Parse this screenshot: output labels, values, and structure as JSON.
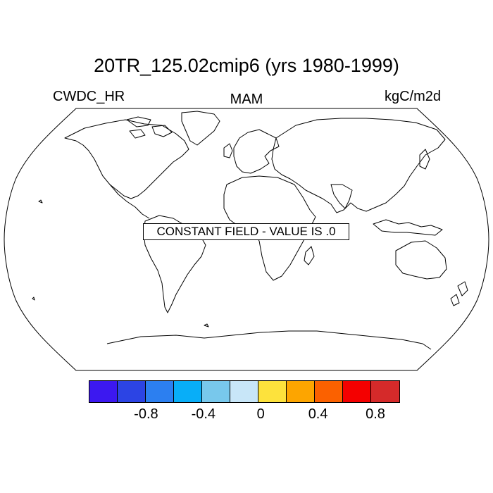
{
  "title": "20TR_125.02cmip6 (yrs 1980-1999)",
  "variable": "CWDC_HR",
  "season": "MAM",
  "units": "kgC/m2d",
  "notice": "CONSTANT FIELD - VALUE IS .0",
  "colorbar": {
    "colors": [
      "#3c18f0",
      "#2c44e4",
      "#2c7ff0",
      "#08aef8",
      "#78c8ec",
      "#c8e6f8",
      "#fde23c",
      "#fda500",
      "#fb6100",
      "#f40000",
      "#d52a2a"
    ],
    "tick_labels": [
      "-0.8",
      "-0.4",
      "0",
      "0.4",
      "0.8"
    ]
  },
  "chart_data": {
    "type": "map",
    "projection": "Robinson",
    "field": "CWDC_HR",
    "constant_value": 0.0,
    "levels": [
      -1.0,
      -0.8,
      -0.6,
      -0.4,
      -0.2,
      0,
      0.2,
      0.4,
      0.6,
      0.8,
      1.0
    ]
  }
}
